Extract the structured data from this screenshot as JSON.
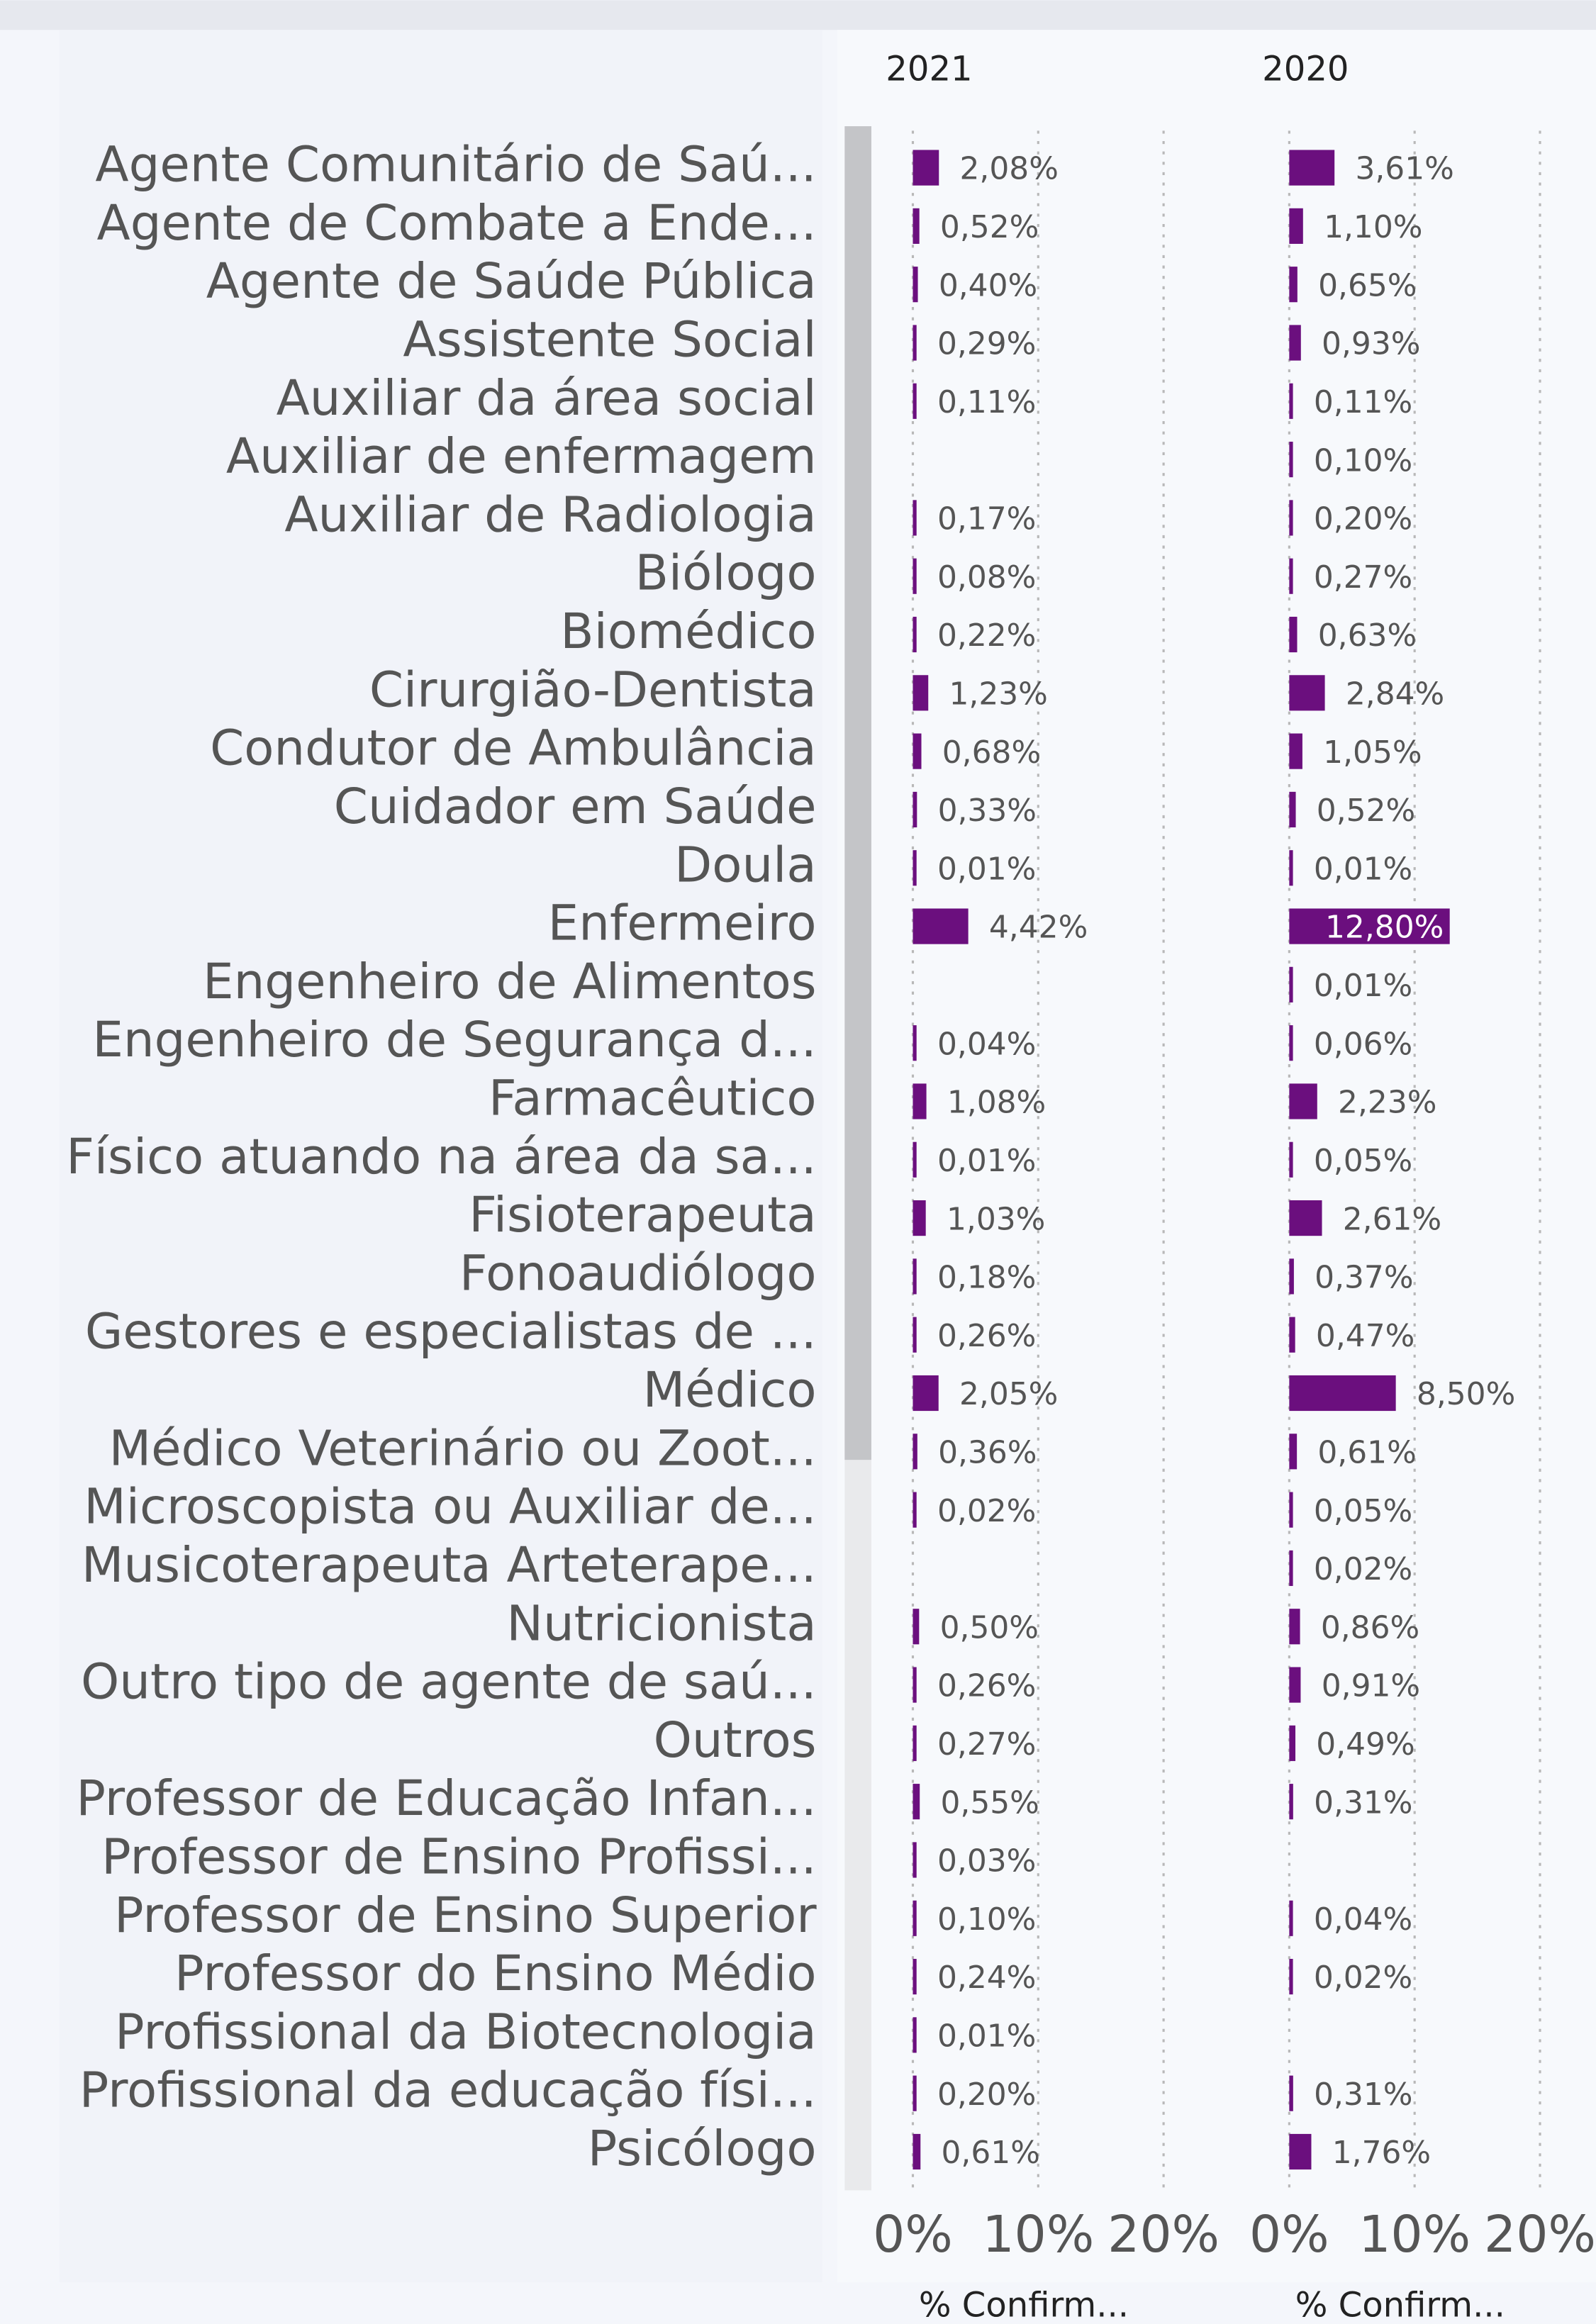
{
  "chart_data": {
    "type": "bar",
    "orientation": "horizontal",
    "categories": [
      "Agente Comunitário de Saú...",
      "Agente de Combate a Ende...",
      "Agente de Saúde Pública",
      "Assistente Social",
      "Auxiliar da área social",
      "Auxiliar de enfermagem",
      "Auxiliar de Radiologia",
      "Biólogo",
      "Biomédico",
      "Cirurgião-Dentista",
      "Condutor de Ambulância",
      "Cuidador em Saúde",
      "Doula",
      "Enfermeiro",
      "Engenheiro de Alimentos",
      "Engenheiro de Segurança d...",
      "Farmacêutico",
      "Físico atuando na área da sa...",
      "Fisioterapeuta",
      "Fonoaudiólogo",
      "Gestores e especialistas de ...",
      "Médico",
      "Médico Veterinário ou Zoot...",
      "Microscopista ou Auxiliar de...",
      "Musicoterapeuta Arteterape...",
      "Nutricionista",
      "Outro tipo de agente de saú...",
      "Outros",
      "Professor de Educação Infan...",
      "Professor de Ensino Profissi...",
      "Professor de Ensino Superior",
      "Professor do Ensino Médio",
      "Profissional da Biotecnologia",
      "Profissional da educação físi...",
      "Psicólogo"
    ],
    "series": [
      {
        "name": "2021",
        "color": "#6b0f7e",
        "values": [
          2.08,
          0.52,
          0.4,
          0.29,
          0.11,
          null,
          0.17,
          0.08,
          0.22,
          1.23,
          0.68,
          0.33,
          0.01,
          4.42,
          null,
          0.04,
          1.08,
          0.01,
          1.03,
          0.18,
          0.26,
          2.05,
          0.36,
          0.02,
          null,
          0.5,
          0.26,
          0.27,
          0.55,
          0.03,
          0.1,
          0.24,
          0.01,
          0.2,
          0.61
        ],
        "value_labels": [
          "2,08%",
          "0,52%",
          "0,40%",
          "0,29%",
          "0,11%",
          null,
          "0,17%",
          "0,08%",
          "0,22%",
          "1,23%",
          "0,68%",
          "0,33%",
          "0,01%",
          "4,42%",
          null,
          "0,04%",
          "1,08%",
          "0,01%",
          "1,03%",
          "0,18%",
          "0,26%",
          "2,05%",
          "0,36%",
          "0,02%",
          null,
          "0,50%",
          "0,26%",
          "0,27%",
          "0,55%",
          "0,03%",
          "0,10%",
          "0,24%",
          "0,01%",
          "0,20%",
          "0,61%"
        ]
      },
      {
        "name": "2020",
        "color": "#6b0f7e",
        "values": [
          3.61,
          1.1,
          0.65,
          0.93,
          0.11,
          0.1,
          0.2,
          0.27,
          0.63,
          2.84,
          1.05,
          0.52,
          0.01,
          12.8,
          0.01,
          0.06,
          2.23,
          0.05,
          2.61,
          0.37,
          0.47,
          8.5,
          0.61,
          0.05,
          0.02,
          0.86,
          0.91,
          0.49,
          0.31,
          null,
          0.04,
          0.02,
          null,
          0.31,
          1.76
        ],
        "value_labels": [
          "3,61%",
          "1,10%",
          "0,65%",
          "0,93%",
          "0,11%",
          "0,10%",
          "0,20%",
          "0,27%",
          "0,63%",
          "2,84%",
          "1,05%",
          "0,52%",
          "0,01%",
          "12,80%",
          "0,01%",
          "0,06%",
          "2,23%",
          "0,05%",
          "2,61%",
          "0,37%",
          "0,47%",
          "8,50%",
          "0,61%",
          "0,05%",
          "0,02%",
          "0,86%",
          "0,91%",
          "0,49%",
          "0,31%",
          null,
          "0,04%",
          "0,02%",
          null,
          "0,31%",
          "1,76%"
        ]
      }
    ],
    "xlabel": "% Confirm...",
    "xlim": [
      0,
      25
    ],
    "xticks": [
      {
        "value": 0,
        "label": "0%"
      },
      {
        "value": 10,
        "label": "10%"
      },
      {
        "value": 20,
        "label": "20%"
      }
    ],
    "grid": true
  }
}
